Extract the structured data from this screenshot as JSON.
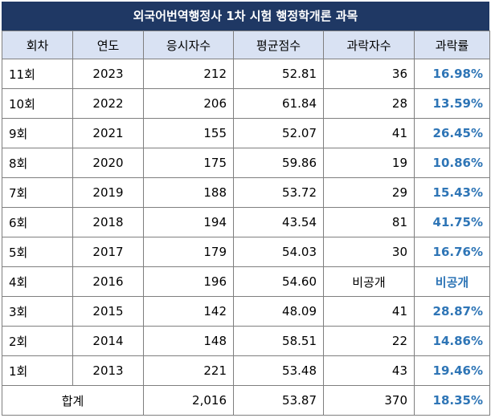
{
  "title": "외국어번역행정사 1차 시험 행정학개론 과목",
  "headers": [
    "회차",
    "연도",
    "응시자수",
    "평균점수",
    "과락자수",
    "과락률"
  ],
  "rows": [
    {
      "round": "11회",
      "year": "2023",
      "applicants": "212",
      "avg": "52.81",
      "fail": "36",
      "rate": "16.98%"
    },
    {
      "round": "10회",
      "year": "2022",
      "applicants": "206",
      "avg": "61.84",
      "fail": "28",
      "rate": "13.59%"
    },
    {
      "round": "9회",
      "year": "2021",
      "applicants": "155",
      "avg": "52.07",
      "fail": "41",
      "rate": "26.45%"
    },
    {
      "round": "8회",
      "year": "2020",
      "applicants": "175",
      "avg": "59.86",
      "fail": "19",
      "rate": "10.86%"
    },
    {
      "round": "7회",
      "year": "2019",
      "applicants": "188",
      "avg": "53.72",
      "fail": "29",
      "rate": "15.43%"
    },
    {
      "round": "6회",
      "year": "2018",
      "applicants": "194",
      "avg": "43.54",
      "fail": "81",
      "rate": "41.75%"
    },
    {
      "round": "5회",
      "year": "2017",
      "applicants": "179",
      "avg": "54.03",
      "fail": "30",
      "rate": "16.76%"
    },
    {
      "round": "4회",
      "year": "2016",
      "applicants": "196",
      "avg": "54.60",
      "fail": "비공개",
      "rate": "비공개"
    },
    {
      "round": "3회",
      "year": "2015",
      "applicants": "142",
      "avg": "48.09",
      "fail": "41",
      "rate": "28.87%"
    },
    {
      "round": "2회",
      "year": "2014",
      "applicants": "148",
      "avg": "58.51",
      "fail": "22",
      "rate": "14.86%"
    },
    {
      "round": "1회",
      "year": "2013",
      "applicants": "221",
      "avg": "53.48",
      "fail": "43",
      "rate": "19.46%"
    }
  ],
  "total": {
    "label": "합계",
    "applicants": "2,016",
    "avg": "53.87",
    "fail": "370",
    "rate": "18.35%"
  },
  "colors": {
    "title_bg": "#1f3864",
    "header_bg": "#d9e2f3",
    "rate_text": "#2e75b6"
  }
}
